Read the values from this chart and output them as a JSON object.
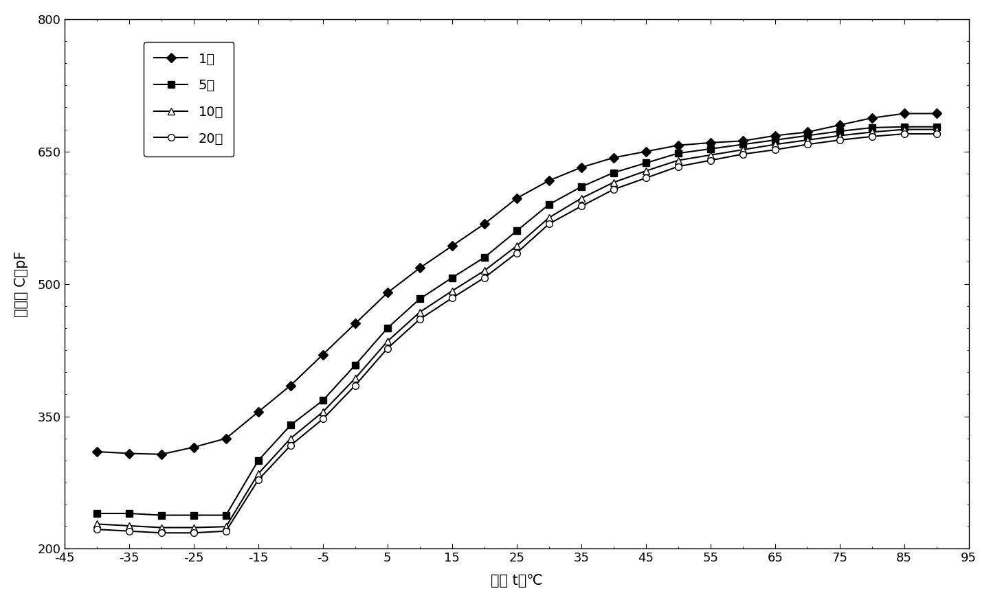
{
  "x_values": [
    -40,
    -35,
    -30,
    -25,
    -20,
    -15,
    -10,
    -5,
    0,
    5,
    10,
    15,
    20,
    25,
    30,
    35,
    40,
    45,
    50,
    55,
    60,
    65,
    70,
    75,
    80,
    85,
    90
  ],
  "series": {
    "1次": {
      "y": [
        310,
        308,
        307,
        315,
        325,
        355,
        385,
        420,
        455,
        490,
        518,
        543,
        568,
        597,
        617,
        632,
        643,
        650,
        657,
        660,
        662,
        668,
        672,
        680,
        688,
        693,
        693
      ],
      "marker": "D",
      "color": "#000000",
      "markersize": 7,
      "markerfacecolor": "#000000"
    },
    "5次": {
      "y": [
        240,
        240,
        238,
        238,
        238,
        300,
        340,
        368,
        408,
        450,
        483,
        507,
        530,
        560,
        590,
        610,
        626,
        637,
        648,
        653,
        658,
        663,
        668,
        673,
        677,
        678,
        678
      ],
      "marker": "s",
      "color": "#000000",
      "markersize": 7,
      "markerfacecolor": "#000000"
    },
    "10次": {
      "y": [
        228,
        226,
        224,
        224,
        225,
        285,
        325,
        355,
        393,
        435,
        468,
        492,
        515,
        543,
        575,
        597,
        615,
        628,
        640,
        646,
        652,
        658,
        663,
        668,
        672,
        675,
        675
      ],
      "marker": "^",
      "color": "#000000",
      "markersize": 7,
      "markerfacecolor": "white"
    },
    "20次": {
      "y": [
        222,
        220,
        218,
        218,
        220,
        278,
        317,
        347,
        385,
        427,
        460,
        484,
        507,
        535,
        568,
        588,
        607,
        620,
        633,
        640,
        647,
        652,
        658,
        663,
        667,
        670,
        670
      ],
      "marker": "o",
      "color": "#000000",
      "markersize": 7,
      "markerfacecolor": "white"
    }
  },
  "xlim": [
    -45,
    95
  ],
  "ylim": [
    200,
    800
  ],
  "xticks": [
    -45,
    -35,
    -25,
    -15,
    -5,
    5,
    15,
    25,
    35,
    45,
    55,
    65,
    75,
    85,
    95
  ],
  "yticks": [
    200,
    350,
    500,
    650,
    800
  ],
  "xlabel": "温度 t／℃",
  "ylabel": "电容率 C／pF",
  "legend_order": [
    "1次",
    "5次",
    "10次",
    "20次"
  ],
  "legend_labels": [
    "1次",
    "5次",
    "10次",
    "20次"
  ],
  "background_color": "#ffffff",
  "linewidth": 1.5
}
